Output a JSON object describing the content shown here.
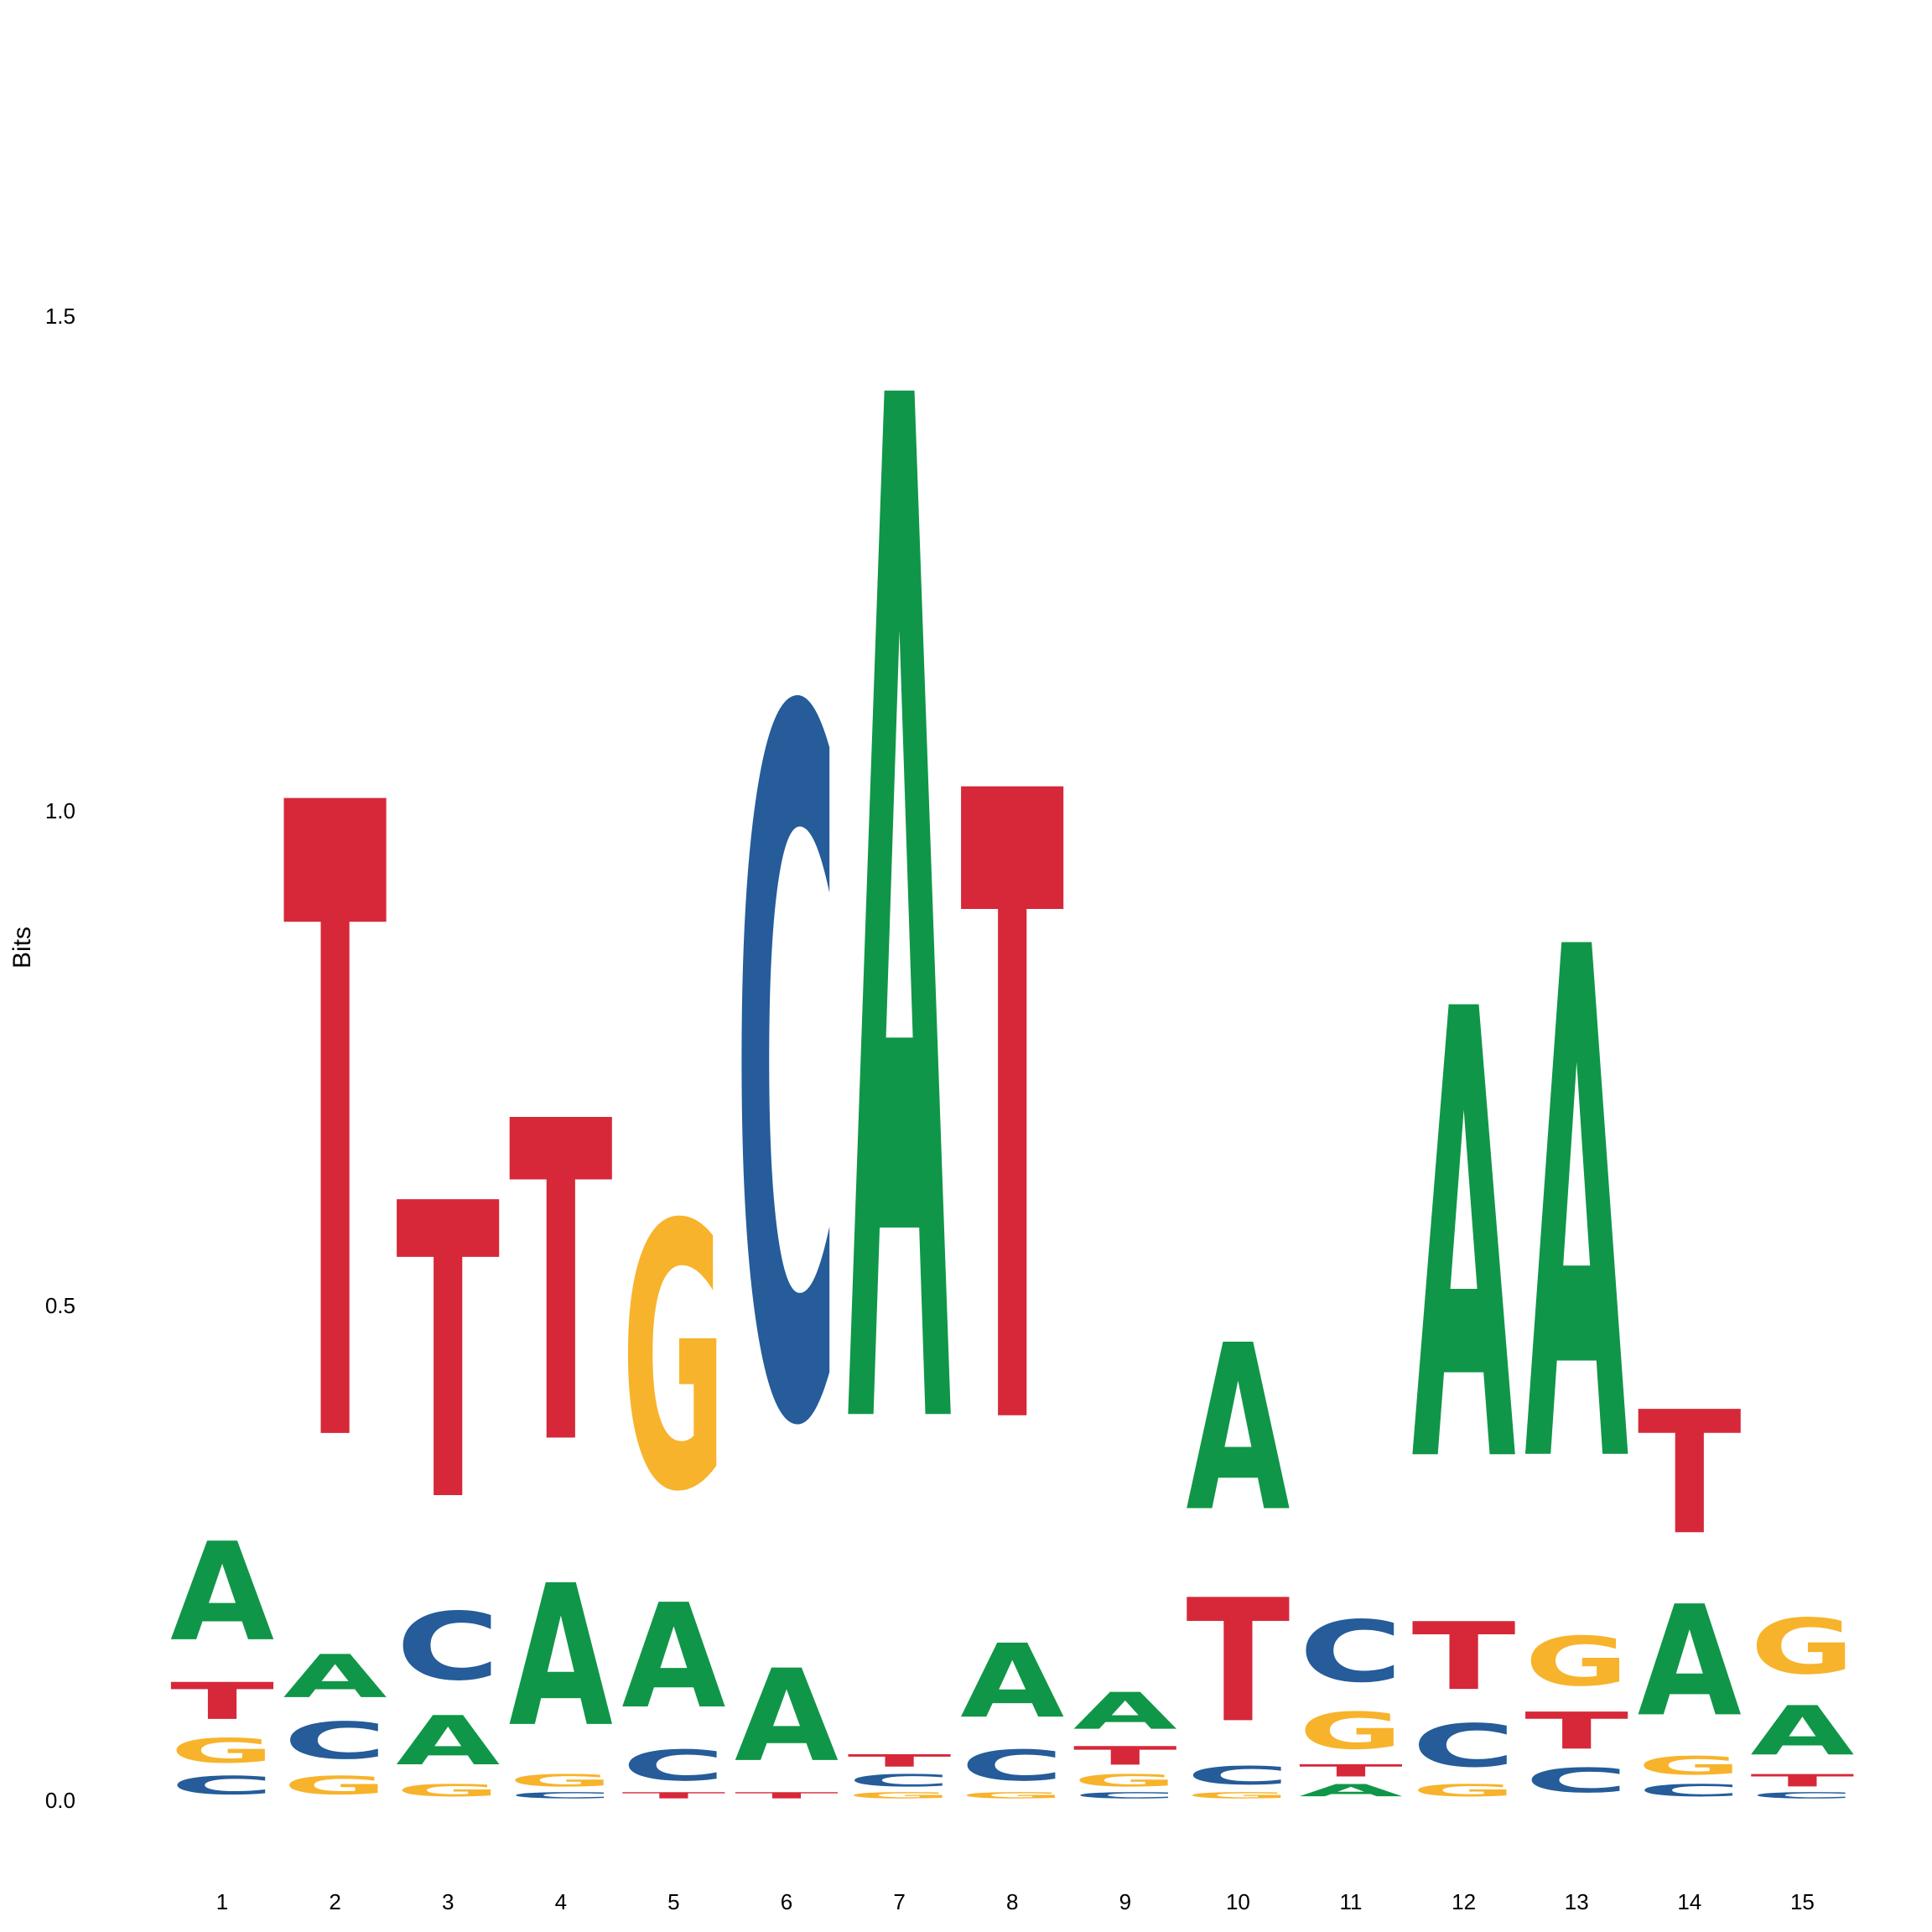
{
  "chart_data": {
    "type": "sequence-logo",
    "title": "",
    "xlabel": "",
    "ylabel": "Bits",
    "ylim": [
      0,
      1.85
    ],
    "y_ticks": [
      {
        "value": 0.0,
        "label": "0.0"
      },
      {
        "value": 0.5,
        "label": "0.5"
      },
      {
        "value": 1.0,
        "label": "1.0"
      },
      {
        "value": 1.5,
        "label": "1.5"
      }
    ],
    "colors": {
      "A": "#109648",
      "C": "#255c99",
      "G": "#f7b32b",
      "T": "#d62839"
    },
    "positions": [
      {
        "label": "1",
        "stack": [
          {
            "base": "C",
            "bits": 0.03
          },
          {
            "base": "G",
            "bits": 0.04
          },
          {
            "base": "T",
            "bits": 0.06
          },
          {
            "base": "A",
            "bits": 0.16
          }
        ]
      },
      {
        "label": "2",
        "stack": [
          {
            "base": "G",
            "bits": 0.03
          },
          {
            "base": "C",
            "bits": 0.06
          },
          {
            "base": "A",
            "bits": 0.07
          },
          {
            "base": "T",
            "bits": 1.03
          }
        ]
      },
      {
        "label": "3",
        "stack": [
          {
            "base": "G",
            "bits": 0.02
          },
          {
            "base": "A",
            "bits": 0.08
          },
          {
            "base": "C",
            "bits": 0.11
          },
          {
            "base": "T",
            "bits": 0.48
          }
        ]
      },
      {
        "label": "4",
        "stack": [
          {
            "base": "C",
            "bits": 0.01
          },
          {
            "base": "G",
            "bits": 0.02
          },
          {
            "base": "A",
            "bits": 0.23
          },
          {
            "base": "T",
            "bits": 0.52
          }
        ]
      },
      {
        "label": "5",
        "stack": [
          {
            "base": "T",
            "bits": 0.01
          },
          {
            "base": "C",
            "bits": 0.05
          },
          {
            "base": "A",
            "bits": 0.17
          },
          {
            "base": "G",
            "bits": 0.43
          }
        ]
      },
      {
        "label": "6",
        "stack": [
          {
            "base": "T",
            "bits": 0.01
          },
          {
            "base": "A",
            "bits": 0.15
          },
          {
            "base": "C",
            "bits": 1.14
          }
        ]
      },
      {
        "label": "7",
        "stack": [
          {
            "base": "G",
            "bits": 0.01
          },
          {
            "base": "C",
            "bits": 0.02
          },
          {
            "base": "T",
            "bits": 0.02
          },
          {
            "base": "A",
            "bits": 1.66
          }
        ]
      },
      {
        "label": "8",
        "stack": [
          {
            "base": "G",
            "bits": 0.01
          },
          {
            "base": "C",
            "bits": 0.05
          },
          {
            "base": "A",
            "bits": 0.12
          },
          {
            "base": "T",
            "bits": 1.02
          }
        ]
      },
      {
        "label": "9",
        "stack": [
          {
            "base": "C",
            "bits": 0.01
          },
          {
            "base": "G",
            "bits": 0.02
          },
          {
            "base": "T",
            "bits": 0.03
          },
          {
            "base": "A",
            "bits": 0.06
          }
        ]
      },
      {
        "label": "10",
        "stack": [
          {
            "base": "G",
            "bits": 0.01
          },
          {
            "base": "C",
            "bits": 0.03
          },
          {
            "base": "T",
            "bits": 0.2
          },
          {
            "base": "A",
            "bits": 0.27
          }
        ]
      },
      {
        "label": "11",
        "stack": [
          {
            "base": "A",
            "bits": 0.02
          },
          {
            "base": "T",
            "bits": 0.02
          },
          {
            "base": "G",
            "bits": 0.06
          },
          {
            "base": "C",
            "bits": 0.1
          }
        ]
      },
      {
        "label": "12",
        "stack": [
          {
            "base": "G",
            "bits": 0.02
          },
          {
            "base": "C",
            "bits": 0.07
          },
          {
            "base": "T",
            "bits": 0.11
          },
          {
            "base": "A",
            "bits": 0.73
          }
        ]
      },
      {
        "label": "13",
        "stack": [
          {
            "base": "C",
            "bits": 0.04
          },
          {
            "base": "T",
            "bits": 0.06
          },
          {
            "base": "G",
            "bits": 0.08
          },
          {
            "base": "A",
            "bits": 0.83
          }
        ]
      },
      {
        "label": "14",
        "stack": [
          {
            "base": "C",
            "bits": 0.02
          },
          {
            "base": "G",
            "bits": 0.03
          },
          {
            "base": "A",
            "bits": 0.18
          },
          {
            "base": "T",
            "bits": 0.2
          }
        ]
      },
      {
        "label": "15",
        "stack": [
          {
            "base": "C",
            "bits": 0.01
          },
          {
            "base": "T",
            "bits": 0.02
          },
          {
            "base": "A",
            "bits": 0.08
          },
          {
            "base": "G",
            "bits": 0.09
          }
        ]
      }
    ]
  }
}
